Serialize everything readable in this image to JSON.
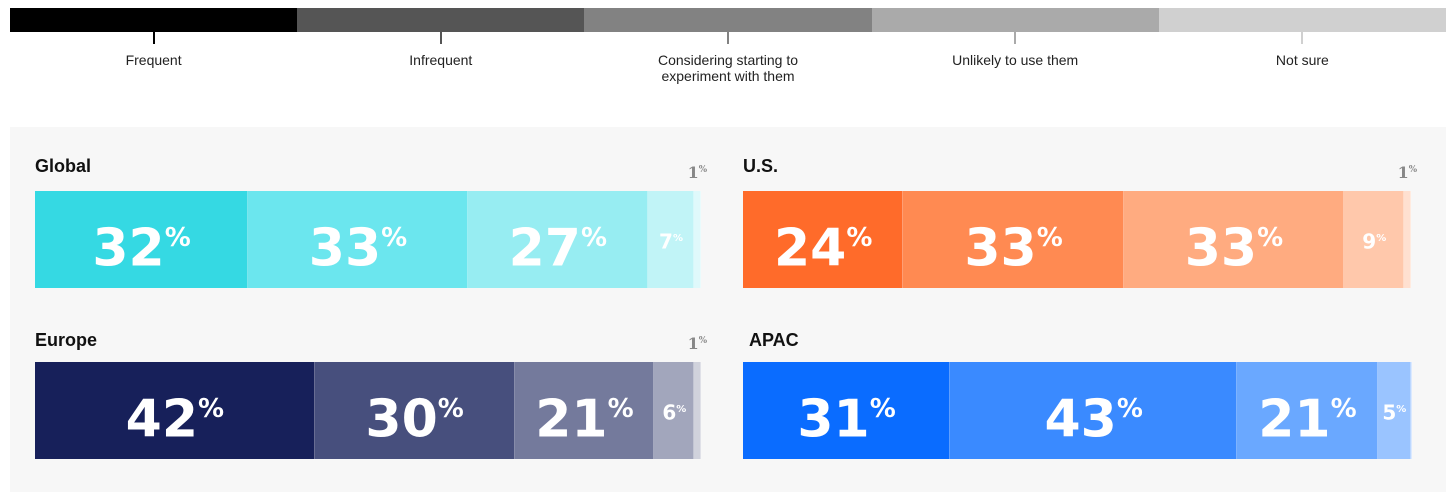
{
  "chart_data": {
    "type": "bar",
    "orientation": "horizontal",
    "stacked": true,
    "categories": [
      "Global",
      "U.S.",
      "Europe",
      "APAC"
    ],
    "series": [
      {
        "name": "Frequent",
        "color": "#000000",
        "values": [
          32,
          24,
          42,
          31
        ],
        "value_labels": [
          "32%",
          "24%",
          "42%",
          "31%"
        ],
        "panel_colors": [
          "#35d9e3",
          "#ff6b2a",
          "#17205a",
          "#0a6cff"
        ]
      },
      {
        "name": "Infrequent",
        "color": "#555555",
        "values": [
          33,
          33,
          30,
          43
        ],
        "value_labels": [
          "33%",
          "33%",
          "30%",
          "43%"
        ],
        "panel_colors": [
          "#6be6ee",
          "#ff8a52",
          "#474f7d",
          "#3a8aff"
        ]
      },
      {
        "name": "Considering starting to experiment with them",
        "color": "#828282",
        "values": [
          27,
          33,
          21,
          21
        ],
        "value_labels": [
          "27%",
          "33%",
          "21%",
          "21%"
        ],
        "panel_colors": [
          "#97edf2",
          "#ffab80",
          "#747a9c",
          "#6aa8ff"
        ]
      },
      {
        "name": "Unlikely to use them",
        "color": "#aaaaaa",
        "values": [
          7,
          9,
          6,
          5
        ],
        "value_labels": [
          "7%",
          "9%",
          "6%",
          "5%"
        ],
        "panel_colors": [
          "#c1f4f7",
          "#ffc8ab",
          "#a2a6bc",
          "#9ac4ff"
        ]
      },
      {
        "name": "Not sure",
        "color": "#d0d0d0",
        "values": [
          1,
          1,
          1,
          0
        ],
        "value_labels": [
          "1%",
          "1%",
          "1%",
          null
        ],
        "panel_colors": [
          "#dff9fb",
          "#ffe0d0",
          "#d0d2dc",
          "#c8deff"
        ]
      }
    ]
  }
}
